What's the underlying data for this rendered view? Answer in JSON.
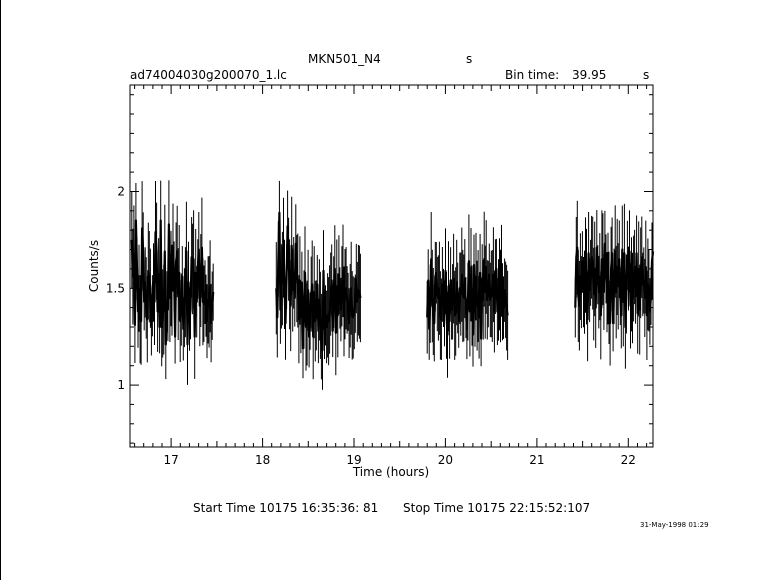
{
  "header": {
    "object": "MKN501_N4",
    "object_unit": "s",
    "file": "ad74004030g200070_1.lc",
    "bin_time_label": "Bin time:",
    "bin_time_value": "39.95",
    "bin_time_unit": "s"
  },
  "footer": {
    "start_time": "Start Time 10175 16:35:36: 81",
    "stop_time": "Stop Time 10175 22:15:52:107",
    "date_stamp": "31-May-1998 01:29"
  },
  "chart_data": {
    "type": "line",
    "xlabel": "Time (hours)",
    "ylabel": "Counts/s",
    "xlim": [
      16.55,
      22.27
    ],
    "ylim": [
      0.68,
      2.55
    ],
    "x_ticks": [
      17,
      18,
      19,
      20,
      21,
      22
    ],
    "x_tick_labels": [
      "17",
      "18",
      "19",
      "20",
      "21",
      "22"
    ],
    "y_ticks": [
      1,
      1.5,
      2
    ],
    "y_tick_labels": [
      "1",
      "1.5",
      "2"
    ],
    "grid": false,
    "segments": [
      {
        "start": 16.57,
        "end": 17.46,
        "values": [
          1.75,
          1.56,
          1.68,
          1.31,
          1.85,
          1.6,
          1.38,
          1.5,
          1.34,
          1.33,
          1.81,
          1.69,
          1.43,
          1.53,
          1.45,
          1.34,
          1.59,
          1.56,
          1.5,
          1.31,
          1.41,
          1.53,
          1.43,
          1.79,
          1.69,
          1.38,
          1.57,
          1.3,
          1.85,
          1.3,
          1.37,
          1.39,
          1.69,
          1.21,
          1.43,
          1.39,
          1.83,
          1.45,
          1.55,
          1.49,
          1.71,
          1.56,
          1.25,
          1.64,
          1.69,
          1.47,
          1.58,
          1.33,
          1.39,
          1.56,
          1.29,
          1.4,
          1.48,
          1.69,
          1.21,
          1.53,
          1.34,
          1.39,
          1.66,
          1.6,
          1.65,
          1.25,
          1.58,
          1.43,
          1.6,
          1.7,
          1.41,
          1.54,
          1.71,
          1.43,
          1.42,
          1.48,
          1.41,
          1.33,
          1.44,
          1.43,
          1.51,
          1.32,
          1.41,
          1.48
        ]
      },
      {
        "start": 18.15,
        "end": 19.07,
        "values": [
          1.5,
          1.35,
          1.65,
          1.89,
          1.39,
          1.51,
          1.55,
          1.71,
          1.52,
          1.32,
          1.56,
          1.82,
          1.65,
          1.52,
          1.41,
          1.72,
          1.49,
          1.58,
          1.45,
          1.73,
          1.55,
          1.54,
          1.34,
          1.54,
          1.35,
          1.53,
          1.19,
          1.39,
          1.58,
          1.3,
          1.32,
          1.49,
          1.25,
          1.33,
          1.47,
          1.52,
          1.25,
          1.48,
          1.33,
          1.36,
          1.52,
          1.28,
          1.44,
          1.36,
          1.25,
          1.18,
          1.59,
          1.29,
          1.36,
          1.3,
          1.36,
          1.33,
          1.39,
          1.47,
          1.54,
          1.28,
          1.48,
          1.6,
          1.27,
          1.51,
          1.36,
          1.57,
          1.45,
          1.39,
          1.51,
          1.59,
          1.38,
          1.47,
          1.5,
          1.44,
          1.43,
          1.32,
          1.41,
          1.5,
          1.36,
          1.35,
          1.37,
          1.42,
          1.55,
          1.43,
          1.49,
          1.48,
          1.45
        ]
      },
      {
        "start": 19.8,
        "end": 20.68,
        "values": [
          1.35,
          1.54,
          1.29,
          1.42,
          1.65,
          1.46,
          1.38,
          1.32,
          1.56,
          1.58,
          1.47,
          1.45,
          1.5,
          1.36,
          1.34,
          1.52,
          1.45,
          1.37,
          1.59,
          1.36,
          1.26,
          1.51,
          1.33,
          1.54,
          1.39,
          1.43,
          1.55,
          1.36,
          1.38,
          1.53,
          1.45,
          1.33,
          1.5,
          1.47,
          1.57,
          1.46,
          1.45,
          1.55,
          1.4,
          1.29,
          1.43,
          1.64,
          1.38,
          1.57,
          1.41,
          1.26,
          1.62,
          1.38,
          1.56,
          1.41,
          1.46,
          1.35,
          1.58,
          1.24,
          1.55,
          1.44,
          1.65,
          1.48,
          1.61,
          1.44,
          1.47,
          1.57,
          1.44,
          1.47,
          1.46,
          1.57,
          1.38,
          1.56,
          1.6,
          1.38,
          1.44,
          1.52,
          1.46,
          1.59,
          1.43,
          1.4,
          1.49,
          1.44,
          1.4,
          1.36
        ]
      },
      {
        "start": 21.42,
        "end": 22.27,
        "values": [
          1.4,
          1.66,
          1.71,
          1.46,
          1.41,
          1.56,
          1.48,
          1.64,
          1.48,
          1.48,
          1.62,
          1.56,
          1.34,
          1.68,
          1.49,
          1.58,
          1.66,
          1.63,
          1.47,
          1.6,
          1.4,
          1.71,
          1.57,
          1.48,
          1.56,
          1.36,
          1.65,
          1.65,
          1.48,
          1.73,
          1.6,
          1.48,
          1.55,
          1.45,
          1.32,
          1.6,
          1.68,
          1.32,
          1.51,
          1.69,
          1.48,
          1.61,
          1.51,
          1.65,
          1.46,
          1.36,
          1.7,
          1.43,
          1.68,
          1.3,
          1.47,
          1.67,
          1.55,
          1.69,
          1.41,
          1.52,
          1.45,
          1.55,
          1.61,
          1.46,
          1.68,
          1.37,
          1.6,
          1.39,
          1.58,
          1.66,
          1.52,
          1.54,
          1.45,
          1.61,
          1.36,
          1.52,
          1.49,
          1.38,
          1.46,
          1.64,
          1.69
        ]
      }
    ]
  }
}
